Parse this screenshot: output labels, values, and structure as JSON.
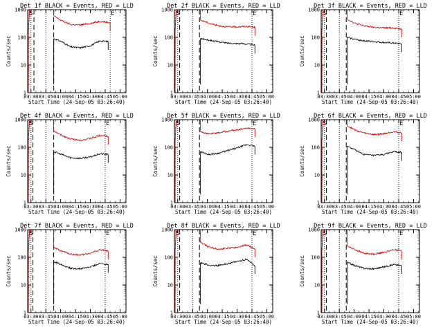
{
  "figure": {
    "xlabel": "Start Time (24-Sep-05 03:26:40)",
    "ylabel": "Counts/sec"
  },
  "chart_data": [
    {
      "type": "line",
      "title": "Det 1f BLACK = Events, RED = LLD",
      "xlabel": "Start Time (24-Sep-05 03:26:40)",
      "ylabel": "Counts/sec",
      "xtick_labels": [
        "03:30",
        "03:45",
        "04:00",
        "04:15",
        "04:30",
        "04:45",
        "05:00"
      ],
      "ytick_labels": [
        "1",
        "10",
        "100",
        "1000"
      ],
      "yscale": "log",
      "ylim": [
        1,
        1000
      ],
      "markers": [
        "S",
        "E"
      ],
      "dotted_times": [
        "03:30",
        "03:45",
        "04:50"
      ],
      "dashed_times": [
        "03:33",
        "03:53"
      ],
      "series": [
        {
          "color": "#000000",
          "x": [
            "03:53",
            "04:01",
            "04:10",
            "04:20",
            "04:30",
            "04:40",
            "04:48"
          ],
          "values": [
            90,
            70,
            45,
            42,
            50,
            75,
            70
          ]
        },
        {
          "color": "#d00000",
          "x": [
            "03:53",
            "04:01",
            "04:10",
            "04:20",
            "04:30",
            "04:40",
            "04:50"
          ],
          "values": [
            600,
            400,
            290,
            280,
            320,
            380,
            340
          ]
        }
      ]
    },
    {
      "type": "line",
      "title": "Det 2f BLACK = Events, RED = LLD",
      "xlabel": "Start Time (24-Sep-05 03:26:40)",
      "ylabel": "Counts/sec",
      "xtick_labels": [
        "03:30",
        "03:45",
        "04:00",
        "04:15",
        "04:30",
        "04:45",
        "05:00"
      ],
      "ytick_labels": [
        "1",
        "10",
        "100",
        "1000"
      ],
      "yscale": "log",
      "ylim": [
        1,
        1000
      ],
      "markers": [
        "S",
        "E"
      ],
      "dotted_times": [
        "03:30",
        "03:45",
        "04:45"
      ],
      "dashed_times": [
        "03:32",
        "03:52"
      ],
      "series": [
        {
          "color": "#000000",
          "x": [
            "03:53",
            "04:01",
            "04:10",
            "04:20",
            "04:30",
            "04:40",
            "04:48"
          ],
          "values": [
            90,
            80,
            70,
            62,
            60,
            58,
            52
          ]
        },
        {
          "color": "#d00000",
          "x": [
            "03:53",
            "04:01",
            "04:10",
            "04:20",
            "04:30",
            "04:40",
            "04:48"
          ],
          "values": [
            420,
            330,
            270,
            240,
            240,
            250,
            230
          ]
        }
      ]
    },
    {
      "type": "line",
      "title": "Det 3f BLACK = Events, RED = LLD",
      "xlabel": "Start Time (24-Sep-05 03:26:40)",
      "ylabel": "Counts/sec",
      "xtick_labels": [
        "03:30",
        "03:45",
        "04:00",
        "04:15",
        "04:30",
        "04:45",
        "05:00"
      ],
      "ytick_labels": [
        "1",
        "10",
        "100",
        "1000"
      ],
      "yscale": "log",
      "ylim": [
        1,
        1000
      ],
      "markers": [
        "S",
        "E"
      ],
      "dotted_times": [
        "03:30",
        "03:45",
        "04:45"
      ],
      "dashed_times": [
        "03:32",
        "03:52"
      ],
      "series": [
        {
          "color": "#000000",
          "x": [
            "03:53",
            "04:01",
            "04:10",
            "04:20",
            "04:30",
            "04:40",
            "04:48"
          ],
          "values": [
            100,
            85,
            75,
            70,
            65,
            62,
            58
          ]
        },
        {
          "color": "#d00000",
          "x": [
            "03:53",
            "04:01",
            "04:10",
            "04:20",
            "04:30",
            "04:40",
            "04:48"
          ],
          "values": [
            450,
            320,
            260,
            230,
            220,
            220,
            200
          ]
        }
      ]
    },
    {
      "type": "line",
      "title": "Det 4f BLACK = Events, RED = LLD",
      "xlabel": "Start Time (24-Sep-05 03:26:40)",
      "ylabel": "Counts/sec",
      "xtick_labels": [
        "03:30",
        "03:45",
        "04:00",
        "04:15",
        "04:30",
        "04:45",
        "05:00"
      ],
      "ytick_labels": [
        "1",
        "10",
        "100",
        "1000"
      ],
      "yscale": "log",
      "ylim": [
        1,
        1000
      ],
      "markers": [
        "S",
        "E"
      ],
      "dotted_times": [
        "03:30",
        "03:45",
        "04:45"
      ],
      "dashed_times": [
        "03:32",
        "03:53"
      ],
      "series": [
        {
          "color": "#000000",
          "x": [
            "03:53",
            "04:01",
            "04:10",
            "04:20",
            "04:30",
            "04:40",
            "04:48"
          ],
          "values": [
            70,
            55,
            42,
            40,
            45,
            58,
            55
          ]
        },
        {
          "color": "#d00000",
          "x": [
            "03:53",
            "04:01",
            "04:10",
            "04:20",
            "04:30",
            "04:40",
            "04:48"
          ],
          "values": [
            380,
            270,
            200,
            180,
            210,
            270,
            250
          ]
        }
      ]
    },
    {
      "type": "line",
      "title": "Det 5f BLACK = Events, RED = LLD",
      "xlabel": "Start Time (24-Sep-05 03:26:40)",
      "ylabel": "Counts/sec",
      "xtick_labels": [
        "03:30",
        "03:45",
        "04:00",
        "04:15",
        "04:30",
        "04:45",
        "05:00"
      ],
      "ytick_labels": [
        "1",
        "10",
        "100",
        "1000"
      ],
      "yscale": "log",
      "ylim": [
        1,
        1000
      ],
      "markers": [
        "S",
        "E"
      ],
      "dotted_times": [
        "03:30",
        "03:45",
        "04:45"
      ],
      "dashed_times": [
        "03:32",
        "03:52"
      ],
      "series": [
        {
          "color": "#000000",
          "x": [
            "03:53",
            "04:01",
            "04:10",
            "04:20",
            "04:30",
            "04:40",
            "04:48"
          ],
          "values": [
            70,
            55,
            60,
            75,
            95,
            125,
            110
          ]
        },
        {
          "color": "#d00000",
          "x": [
            "03:53",
            "04:01",
            "04:10",
            "04:20",
            "04:30",
            "04:40",
            "04:48"
          ],
          "values": [
            380,
            300,
            330,
            380,
            430,
            500,
            470
          ]
        }
      ]
    },
    {
      "type": "line",
      "title": "Det 6f BLACK = Events, RED = LLD",
      "xlabel": "Start Time (24-Sep-05 03:26:40)",
      "ylabel": "Counts/sec",
      "xtick_labels": [
        "03:30",
        "03:45",
        "04:00",
        "04:15",
        "04:30",
        "04:45",
        "05:00"
      ],
      "ytick_labels": [
        "1",
        "10",
        "100",
        "1000"
      ],
      "yscale": "log",
      "ylim": [
        1,
        1000
      ],
      "markers": [
        "S",
        "E"
      ],
      "dotted_times": [
        "03:30",
        "03:45",
        "04:45"
      ],
      "dashed_times": [
        "03:32",
        "03:52"
      ],
      "series": [
        {
          "color": "#000000",
          "x": [
            "03:53",
            "04:01",
            "04:10",
            "04:20",
            "04:30",
            "04:40",
            "04:48"
          ],
          "values": [
            110,
            80,
            55,
            50,
            55,
            70,
            65
          ]
        },
        {
          "color": "#d00000",
          "x": [
            "03:53",
            "04:01",
            "04:10",
            "04:20",
            "04:30",
            "04:40",
            "04:48"
          ],
          "values": [
            600,
            420,
            330,
            290,
            310,
            370,
            330
          ]
        }
      ]
    },
    {
      "type": "line",
      "title": "Det 7f BLACK = Events, RED = LLD",
      "xlabel": "Start Time (24-Sep-05 03:26:40)",
      "ylabel": "Counts/sec",
      "xtick_labels": [
        "03:30",
        "03:45",
        "04:00",
        "04:15",
        "04:30",
        "04:45",
        "05:00"
      ],
      "ytick_labels": [
        "1",
        "10",
        "100",
        "1000"
      ],
      "yscale": "log",
      "ylim": [
        1,
        1000
      ],
      "markers": [
        "S",
        "E"
      ],
      "dotted_times": [
        "03:30",
        "03:45",
        "04:45"
      ],
      "dashed_times": [
        "03:32",
        "03:53"
      ],
      "series": [
        {
          "color": "#000000",
          "x": [
            "03:53",
            "04:01",
            "04:10",
            "04:20",
            "04:30",
            "04:40",
            "04:48"
          ],
          "values": [
            70,
            55,
            40,
            38,
            45,
            60,
            55
          ]
        },
        {
          "color": "#d00000",
          "x": [
            "03:53",
            "04:01",
            "04:10",
            "04:20",
            "04:30",
            "04:40",
            "04:48"
          ],
          "values": [
            220,
            170,
            130,
            120,
            140,
            190,
            170
          ]
        }
      ]
    },
    {
      "type": "line",
      "title": "Det 8f BLACK = Events, RED = LLD",
      "xlabel": "Start Time (24-Sep-05 03:26:40)",
      "ylabel": "Counts/sec",
      "xtick_labels": [
        "03:30",
        "03:45",
        "04:00",
        "04:15",
        "04:30",
        "04:45",
        "05:00"
      ],
      "ytick_labels": [
        "1",
        "10",
        "100",
        "1000"
      ],
      "yscale": "log",
      "ylim": [
        1,
        1000
      ],
      "markers": [
        "S",
        "E"
      ],
      "dotted_times": [
        "03:30",
        "03:45",
        "04:45"
      ],
      "dashed_times": [
        "03:32",
        "03:52"
      ],
      "series": [
        {
          "color": "#000000",
          "x": [
            "03:53",
            "04:01",
            "04:10",
            "04:20",
            "04:30",
            "04:40",
            "04:48"
          ],
          "values": [
            65,
            52,
            50,
            58,
            70,
            85,
            50
          ]
        },
        {
          "color": "#d00000",
          "x": [
            "03:53",
            "04:01",
            "04:10",
            "04:20",
            "04:30",
            "04:40",
            "04:48"
          ],
          "values": [
            350,
            240,
            200,
            210,
            230,
            280,
            200
          ]
        }
      ]
    },
    {
      "type": "line",
      "title": "Det 9f BLACK = Events, RED = LLD",
      "xlabel": "Start Time (24-Sep-05 03:26:40)",
      "ylabel": "Counts/sec",
      "xtick_labels": [
        "03:30",
        "03:45",
        "04:00",
        "04:15",
        "04:30",
        "04:45",
        "05:00"
      ],
      "ytick_labels": [
        "1",
        "10",
        "100",
        "1000"
      ],
      "yscale": "log",
      "ylim": [
        1,
        1000
      ],
      "markers": [
        "S",
        "E"
      ],
      "dotted_times": [
        "03:30",
        "03:45",
        "04:45"
      ],
      "dashed_times": [
        "03:32",
        "03:52"
      ],
      "series": [
        {
          "color": "#000000",
          "x": [
            "03:53",
            "04:01",
            "04:10",
            "04:20",
            "04:30",
            "04:40",
            "04:48"
          ],
          "values": [
            65,
            50,
            40,
            38,
            45,
            55,
            50
          ]
        },
        {
          "color": "#d00000",
          "x": [
            "03:53",
            "04:01",
            "04:10",
            "04:20",
            "04:30",
            "04:40",
            "04:48"
          ],
          "values": [
            260,
            190,
            140,
            130,
            150,
            190,
            170
          ]
        }
      ]
    }
  ]
}
